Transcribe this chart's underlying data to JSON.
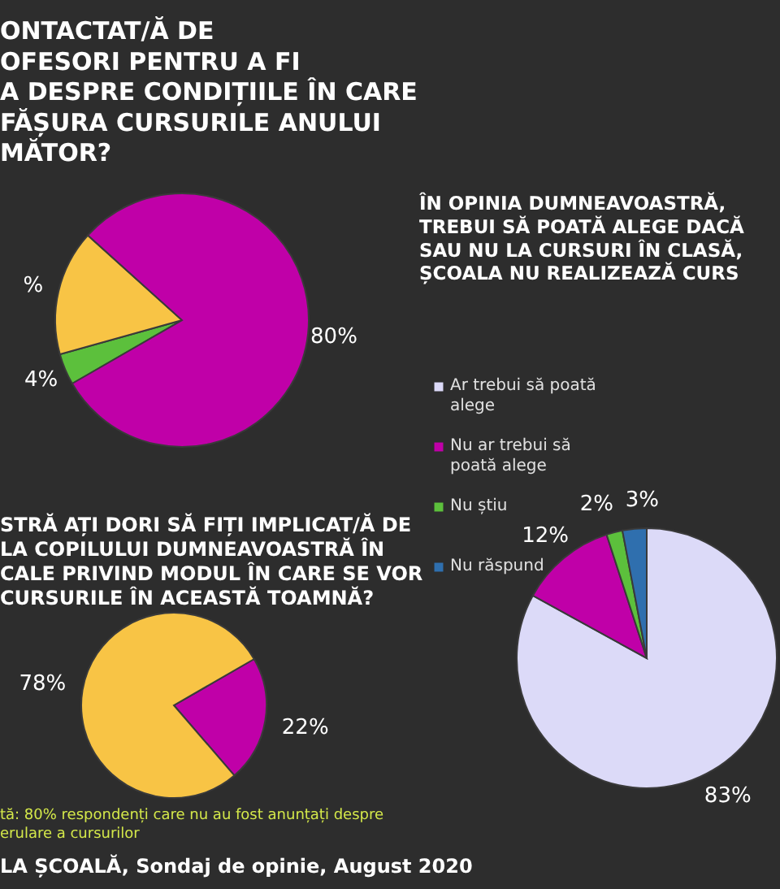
{
  "chart_data": [
    {
      "type": "pie",
      "title": "ONTACTAT/Ă DE\nOFESORI PENTRU A FI\nA DESPRE CONDIȚIILE ÎN CARE\nFĂȘURA CURSURILE ANULUI\nMĂTOR?",
      "categories": [
        null,
        null,
        null
      ],
      "values": [
        4,
        16,
        80
      ],
      "colors": [
        "#5cc03c",
        "#f8c445",
        "#c000a8"
      ],
      "value_labels": [
        "4%",
        "%",
        "80%"
      ]
    },
    {
      "type": "pie",
      "title": "STRĂ AȚI DORI SĂ FIȚI IMPLICAT/Ă DE\nLA COPILULUI DUMNEAVOASTRĂ ÎN\nCALE PRIVIND MODUL ÎN CARE SE VOR\nCURSURILE ÎN ACEASTĂ TOAMNĂ?",
      "categories": [
        null,
        null
      ],
      "values": [
        22,
        78
      ],
      "colors": [
        "#c000a8",
        "#f8c445"
      ],
      "value_labels": [
        "22%",
        "78%"
      ],
      "annotations": [
        "tă: 80% respondenți care nu au fost anunțați despre\nerulare a cursurilor",
        "LA ȘCOALĂ, Sondaj de opinie, August 2020"
      ]
    },
    {
      "type": "pie",
      "title": "ÎN OPINIA DUMNEAVOASTRĂ,\nTREBUI SĂ POATĂ ALEGE DACĂ\nSAU NU LA CURSURI ÎN CLASĂ,\nȘCOALA NU REALIZEAZĂ CURS",
      "categories": [
        "Ar trebui să poată alege",
        "Nu ar trebui să poată alege",
        "Nu știu",
        "Nu răspund"
      ],
      "values": [
        83,
        12,
        2,
        3
      ],
      "colors": [
        "#dcdaf8",
        "#c000a8",
        "#5cc03c",
        "#2f6fae"
      ],
      "value_labels": [
        "83%",
        "12%",
        "2%",
        "3%"
      ],
      "legend": "left"
    }
  ]
}
